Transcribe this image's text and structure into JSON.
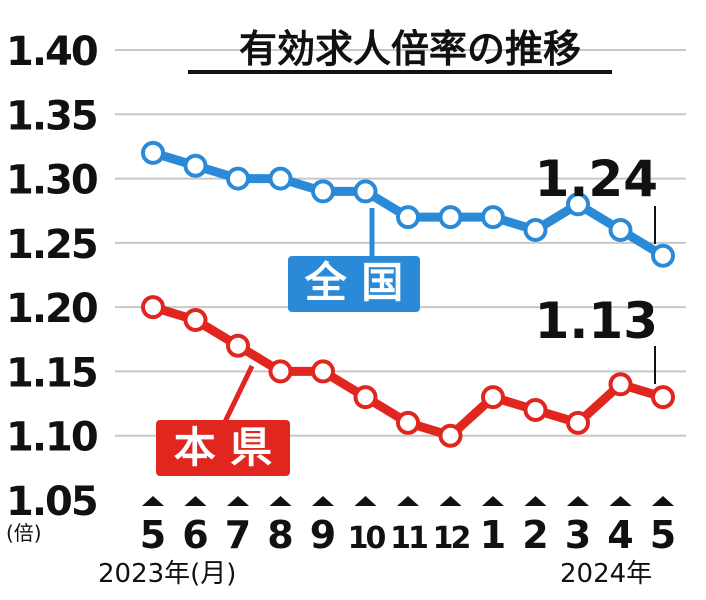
{
  "chart_data": {
    "type": "line",
    "title": "有効求人倍率の推移",
    "ylabel": "(倍)",
    "ylim": [
      1.05,
      1.4
    ],
    "yticks": [
      "1.40",
      "1.35",
      "1.30",
      "1.25",
      "1.20",
      "1.15",
      "1.10",
      "1.05"
    ],
    "categories": [
      "5",
      "6",
      "7",
      "8",
      "9",
      "10",
      "11",
      "12",
      "1",
      "2",
      "3",
      "4",
      "5"
    ],
    "x_start_label": "2023年(月)",
    "x_end_label": "2024年",
    "series": [
      {
        "name": "全 国",
        "color": "#2b8ad8",
        "values": [
          1.32,
          1.31,
          1.3,
          1.3,
          1.29,
          1.29,
          1.27,
          1.27,
          1.27,
          1.26,
          1.28,
          1.26,
          1.24
        ],
        "end_label": "1.24"
      },
      {
        "name": "本 県",
        "color": "#e0261e",
        "values": [
          1.2,
          1.19,
          1.17,
          1.15,
          1.15,
          1.13,
          1.11,
          1.1,
          1.13,
          1.12,
          1.11,
          1.14,
          1.13
        ],
        "end_label": "1.13"
      }
    ]
  }
}
